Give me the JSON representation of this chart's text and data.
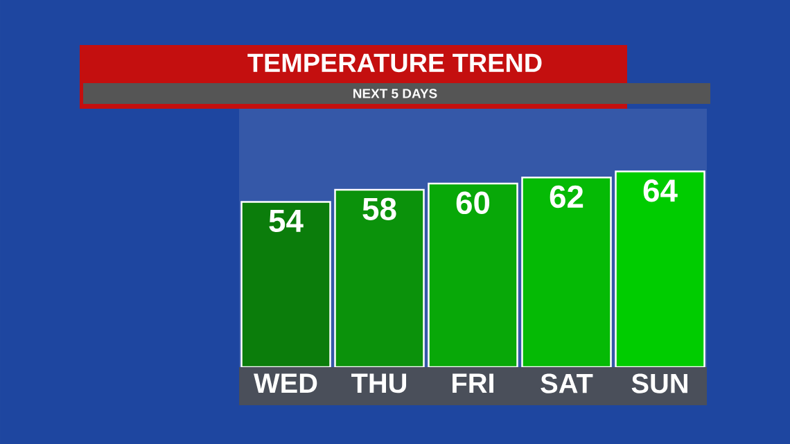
{
  "chart_data": {
    "type": "bar",
    "title": "TEMPERATURE TREND",
    "subtitle": "NEXT 5 DAYS",
    "categories": [
      "WED",
      "THU",
      "FRI",
      "SAT",
      "SUN"
    ],
    "values": [
      54,
      58,
      60,
      62,
      64
    ],
    "colors": [
      "#0b7d0b",
      "#0b920b",
      "#08a808",
      "#05ba05",
      "#00cc00"
    ],
    "data_labels": true
  }
}
